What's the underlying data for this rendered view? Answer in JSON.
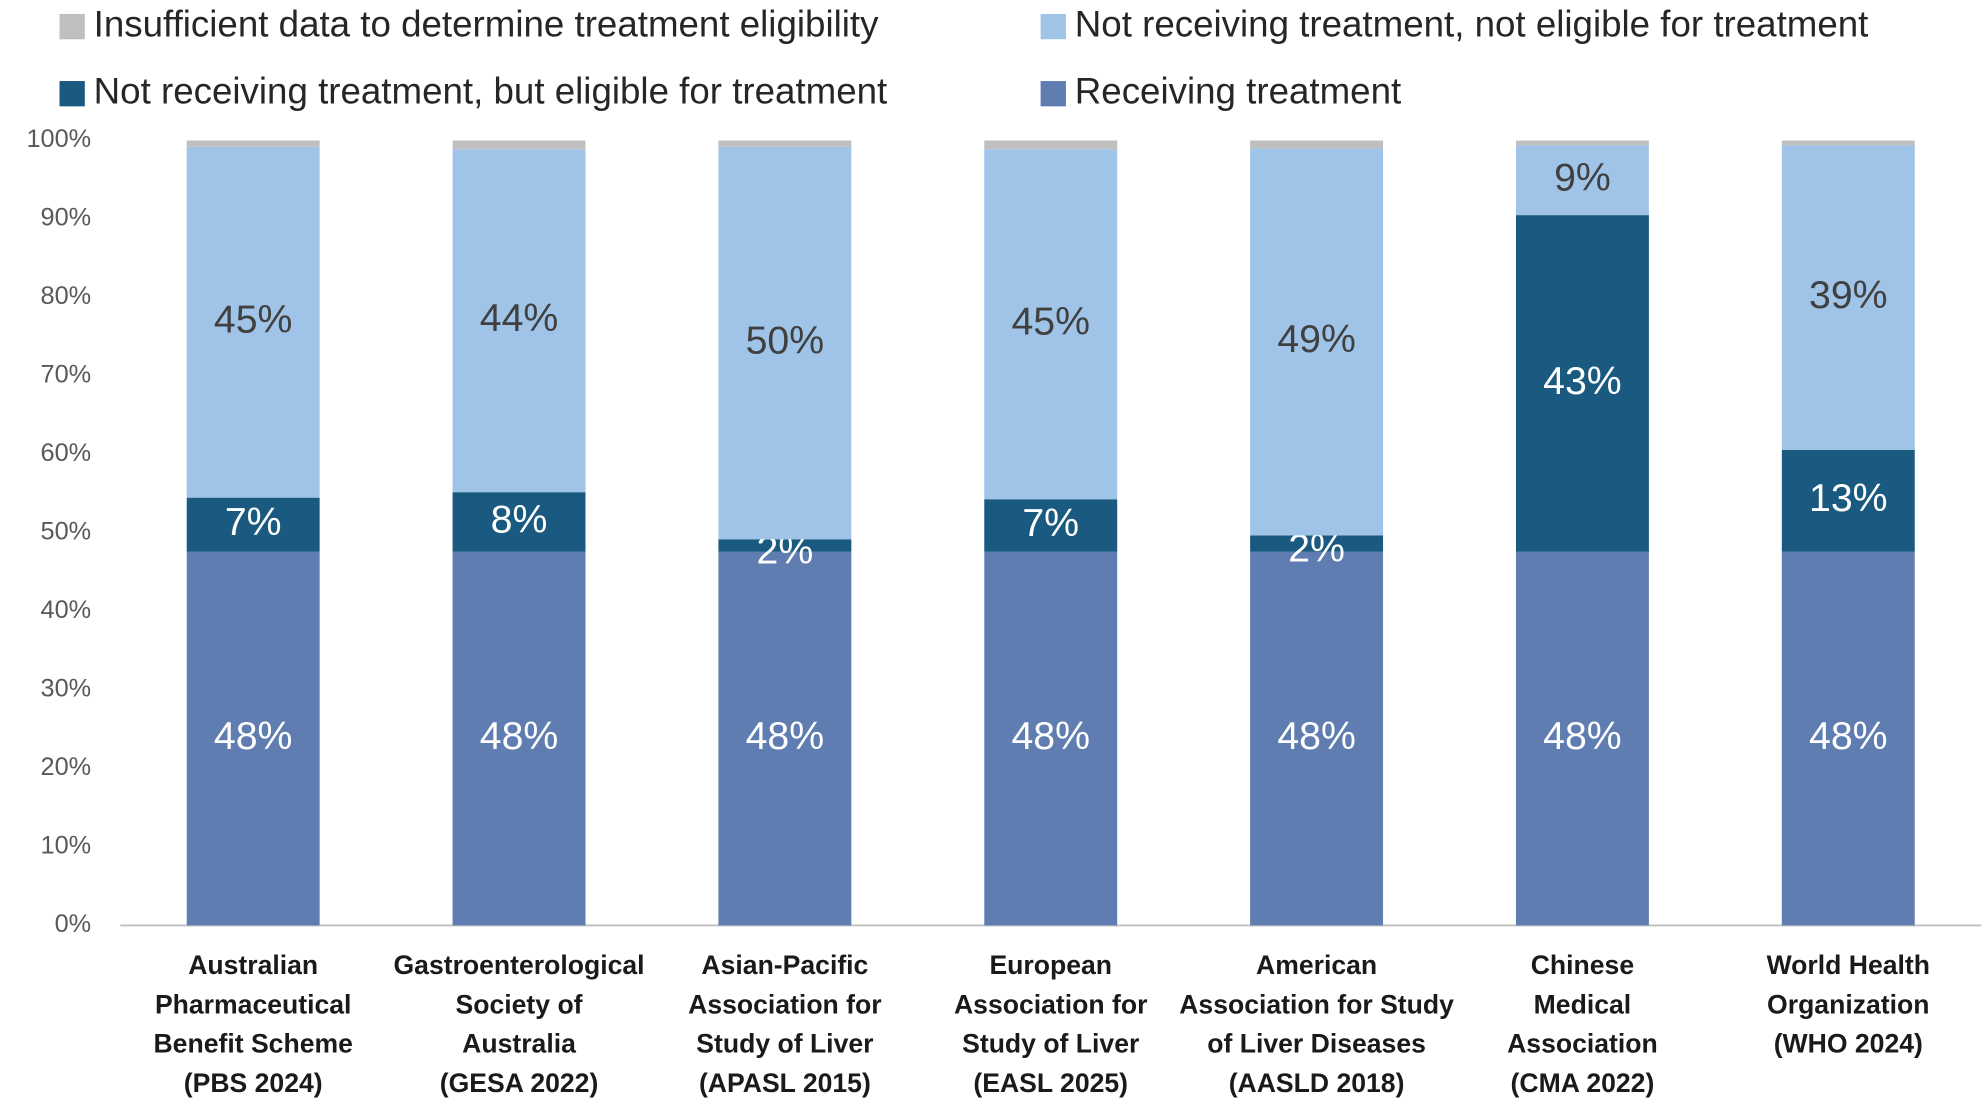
{
  "chart_data": {
    "type": "stacked_bar",
    "categories": [
      [
        "Australian",
        "Pharmaceutical",
        "Benefit Scheme",
        "(PBS 2024)"
      ],
      [
        "Gastroenterological",
        "Society of",
        "Australia",
        "(GESA 2022)"
      ],
      [
        "Asian-Pacific",
        "Association for",
        "Study of Liver",
        "(APASL 2015)"
      ],
      [
        "European",
        "Association for",
        "Study of Liver",
        "(EASL 2025)"
      ],
      [
        "American",
        "Association for Study",
        "of Liver Diseases",
        "(AASLD 2018)"
      ],
      [
        "Chinese",
        "Medical",
        "Association",
        "(CMA 2022)"
      ],
      [
        "World Health",
        "Organization",
        "(WHO 2024)"
      ]
    ],
    "series": [
      {
        "name": "Receiving treatment",
        "color": "#5f7db0",
        "values": [
          47.6,
          47.6,
          47.6,
          47.6,
          47.6,
          47.6,
          47.6
        ],
        "value_labels": [
          "48%",
          "48%",
          "48%",
          "48%",
          "48%",
          "48%",
          "48%"
        ]
      },
      {
        "name": "Not receiving treatment, but eligible for treatment",
        "color": "#1a5a80",
        "values": [
          6.9,
          7.6,
          1.6,
          6.7,
          2.1,
          42.9,
          13.0
        ],
        "value_labels": [
          "7%",
          "8%",
          "2%",
          "7%",
          "2%",
          "43%",
          "13%"
        ]
      },
      {
        "name": "Not receiving treatment, not eligible for treatment",
        "color": "#9fc4e7",
        "values": [
          44.7,
          43.7,
          50.0,
          44.6,
          49.3,
          8.9,
          38.8
        ],
        "value_labels": [
          "45%",
          "44%",
          "50%",
          "45%",
          "49%",
          "9%",
          "39%"
        ]
      },
      {
        "name": "Insufficient data to determine treatment eligibility",
        "color": "#bfbfbf",
        "values": [
          0.8,
          1.1,
          0.8,
          1.1,
          1.0,
          0.6,
          0.6
        ]
      }
    ],
    "ylim": [
      0,
      100
    ],
    "yticks": [
      {
        "value": 0,
        "label": "0%"
      },
      {
        "value": 10,
        "label": "10%"
      },
      {
        "value": 20,
        "label": "20%"
      },
      {
        "value": 30,
        "label": "30%"
      },
      {
        "value": 40,
        "label": "40%"
      },
      {
        "value": 50,
        "label": "50%"
      },
      {
        "value": 60,
        "label": "60%"
      },
      {
        "value": 70,
        "label": "70%"
      },
      {
        "value": 80,
        "label": "80%"
      },
      {
        "value": 90,
        "label": "90%"
      },
      {
        "value": 100,
        "label": "100%"
      }
    ],
    "grid": false,
    "legend": "top"
  }
}
